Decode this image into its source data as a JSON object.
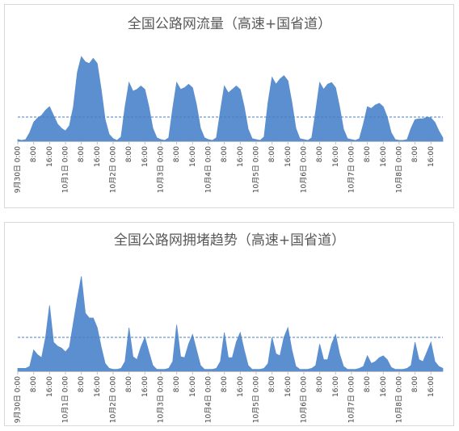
{
  "chart_data": [
    {
      "type": "area",
      "title": "全国公路网流量（高速+国省道）",
      "color": "#5b8fd0",
      "ylim": [
        0,
        100
      ],
      "reference_line": 28,
      "categories": [
        "9月30日 0:00",
        null,
        null,
        null,
        "8:00",
        null,
        null,
        null,
        "16:00",
        null,
        null,
        null,
        "10月1日 0:00",
        null,
        null,
        null,
        "8:00",
        null,
        null,
        null,
        "16:00",
        null,
        null,
        null,
        "10月2日 0:00",
        null,
        null,
        null,
        "8:00",
        null,
        null,
        null,
        "16:00",
        null,
        null,
        null,
        "10月3日 0:00",
        null,
        null,
        null,
        "8:00",
        null,
        null,
        null,
        "16:00",
        null,
        null,
        null,
        "10月4日 0:00",
        null,
        null,
        null,
        "8:00",
        null,
        null,
        null,
        "16:00",
        null,
        null,
        null,
        "10月5日 0:00",
        null,
        null,
        null,
        "8:00",
        null,
        null,
        null,
        "16:00",
        null,
        null,
        null,
        "10月6日 0:00",
        null,
        null,
        null,
        "8:00",
        null,
        null,
        null,
        "16:00",
        null,
        null,
        null,
        "10月7日 0:00",
        null,
        null,
        null,
        "8:00",
        null,
        null,
        null,
        "16:00",
        null,
        null,
        null,
        "10月8日 0:00",
        null,
        null,
        null,
        "8:00",
        null,
        null,
        null,
        "16:00",
        null,
        null,
        null
      ],
      "values": [
        2,
        1,
        2,
        10,
        22,
        27,
        30,
        36,
        40,
        30,
        20,
        15,
        12,
        18,
        40,
        80,
        98,
        92,
        90,
        96,
        90,
        60,
        25,
        8,
        3,
        1,
        5,
        40,
        68,
        58,
        60,
        64,
        60,
        40,
        15,
        4,
        2,
        1,
        4,
        38,
        68,
        60,
        62,
        66,
        62,
        42,
        15,
        4,
        2,
        1,
        4,
        35,
        64,
        56,
        60,
        64,
        60,
        40,
        14,
        3,
        2,
        1,
        5,
        45,
        74,
        66,
        72,
        76,
        70,
        45,
        15,
        3,
        2,
        1,
        4,
        35,
        68,
        60,
        66,
        68,
        62,
        40,
        14,
        3,
        2,
        1,
        3,
        20,
        40,
        38,
        42,
        44,
        40,
        28,
        10,
        2,
        1,
        1,
        2,
        15,
        25,
        26,
        26,
        28,
        27,
        22,
        12,
        4
      ]
    },
    {
      "type": "area",
      "title": "全国公路网拥堵趋势（高速+国省道）",
      "color": "#5b8fd0",
      "ylim": [
        0,
        100
      ],
      "reference_line": 35,
      "categories": [
        "9月30日 0:00",
        null,
        null,
        null,
        "8:00",
        null,
        null,
        null,
        "16:00",
        null,
        null,
        null,
        "10月1日 0:00",
        null,
        null,
        null,
        "8:00",
        null,
        null,
        null,
        "16:00",
        null,
        null,
        null,
        "10月2日 0:00",
        null,
        null,
        null,
        "8:00",
        null,
        null,
        null,
        "16:00",
        null,
        null,
        null,
        "10月3日 0:00",
        null,
        null,
        null,
        "8:00",
        null,
        null,
        null,
        "16:00",
        null,
        null,
        null,
        "10月4日 0:00",
        null,
        null,
        null,
        "8:00",
        null,
        null,
        null,
        "16:00",
        null,
        null,
        null,
        "10月5日 0:00",
        null,
        null,
        null,
        "8:00",
        null,
        null,
        null,
        "16:00",
        null,
        null,
        null,
        "10月6日 0:00",
        null,
        null,
        null,
        "8:00",
        null,
        null,
        null,
        "16:00",
        null,
        null,
        null,
        "10月7日 0:00",
        null,
        null,
        null,
        "8:00",
        null,
        null,
        null,
        "16:00",
        null,
        null,
        null,
        "10月8日 0:00",
        null,
        null,
        null,
        "8:00",
        null,
        null,
        null,
        "16:00",
        null,
        null,
        null
      ],
      "values": [
        3,
        3,
        3,
        5,
        22,
        17,
        14,
        35,
        68,
        30,
        26,
        24,
        20,
        25,
        50,
        75,
        98,
        60,
        55,
        55,
        45,
        25,
        8,
        3,
        2,
        2,
        3,
        10,
        45,
        15,
        12,
        25,
        35,
        20,
        6,
        2,
        2,
        2,
        3,
        10,
        48,
        15,
        14,
        28,
        38,
        22,
        6,
        2,
        2,
        2,
        3,
        10,
        40,
        14,
        14,
        30,
        40,
        22,
        6,
        2,
        2,
        2,
        3,
        8,
        35,
        18,
        16,
        35,
        45,
        22,
        5,
        2,
        2,
        2,
        3,
        6,
        28,
        12,
        12,
        28,
        38,
        18,
        5,
        2,
        2,
        2,
        3,
        5,
        16,
        8,
        10,
        14,
        16,
        12,
        4,
        2,
        2,
        2,
        3,
        6,
        30,
        12,
        10,
        20,
        30,
        10,
        5,
        3
      ]
    }
  ]
}
